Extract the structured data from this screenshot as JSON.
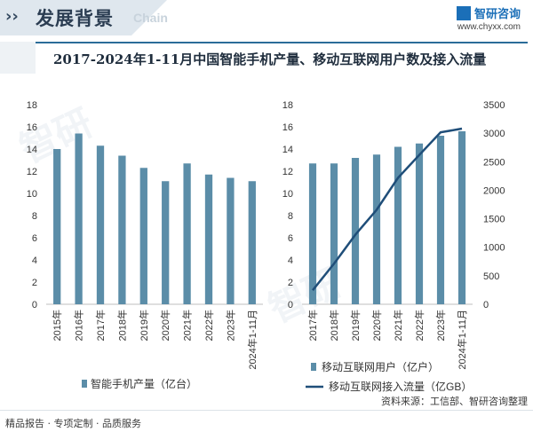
{
  "header": {
    "title": "发展背景",
    "subtitle": "Chain",
    "brand_name": "智研咨询",
    "brand_url": "www.chyxx.com"
  },
  "main_title": "2017-2024年1-11月中国智能手机产量、移动互联网用户数及接入流量",
  "footer": {
    "left": "精品报告 · 专项定制 · 品质服务",
    "right": "资料来源：工信部、智研咨询整理"
  },
  "colors": {
    "bar": "#5b8da8",
    "line": "#1f4e79",
    "accent": "#2b6c99"
  },
  "chart_data": [
    {
      "type": "bar",
      "categories": [
        "2015年",
        "2016年",
        "2017年",
        "2018年",
        "2019年",
        "2020年",
        "2021年",
        "2022年",
        "2023年",
        "2024年1-11月"
      ],
      "series": [
        {
          "name": "智能手机产量（亿台）",
          "values": [
            14.0,
            15.4,
            14.3,
            13.4,
            12.3,
            11.1,
            12.7,
            11.7,
            11.4,
            11.1
          ]
        }
      ],
      "ylim": [
        0,
        18
      ],
      "yticks": [
        "0",
        "2",
        "4",
        "6",
        "8",
        "10",
        "12",
        "14",
        "16",
        "18"
      ],
      "legend": "bottom"
    },
    {
      "type": "bar",
      "categories": [
        "2017年",
        "2018年",
        "2019年",
        "2020年",
        "2021年",
        "2022年",
        "2023年",
        "2024年1-11月"
      ],
      "series": [
        {
          "name": "移动互联网用户（亿户）",
          "type": "bar",
          "axis": "left",
          "values": [
            12.7,
            12.7,
            13.2,
            13.5,
            14.2,
            14.5,
            15.2,
            15.6
          ]
        },
        {
          "name": "移动互联网接入流量（亿GB）",
          "type": "line",
          "axis": "right",
          "values": [
            246,
            711,
            1220,
            1656,
            2216,
            2618,
            3015,
            3080
          ]
        }
      ],
      "ylim": [
        0,
        18
      ],
      "yticks": [
        "0",
        "2",
        "4",
        "6",
        "8",
        "10",
        "12",
        "14",
        "16",
        "18"
      ],
      "y2lim": [
        0,
        3500
      ],
      "y2ticks": [
        "0",
        "500",
        "1000",
        "1500",
        "2000",
        "2500",
        "3000",
        "3500"
      ],
      "legend": "bottom"
    }
  ]
}
